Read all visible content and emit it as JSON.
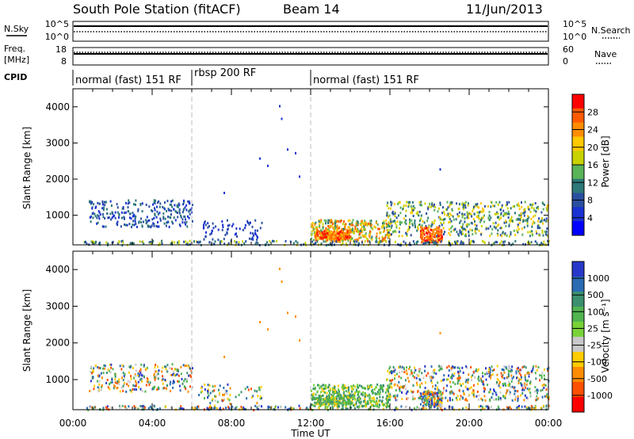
{
  "header": {
    "station": "South Pole Station (fitACF)",
    "beam": "Beam 14",
    "date": "11/Jun/2013"
  },
  "side_labels": {
    "n_sky": "N.Sky",
    "freq_top": "Freq.",
    "freq_unit": "[MHz]",
    "cpid": "CPID",
    "n_search": "N.Search",
    "nave": "Nave"
  },
  "chart_data": [
    {
      "type": "line",
      "title": "N.Sky / N.Search",
      "yticks_left": [
        "10^5",
        "10^0"
      ],
      "yticks_right": [
        "10^5",
        "10^0"
      ],
      "series": [
        {
          "name": "N.Sky",
          "style": "solid"
        },
        {
          "name": "N.Search",
          "style": "dotted"
        }
      ]
    },
    {
      "type": "line",
      "title": "Freq. / Nave",
      "yticks_left": [
        "18",
        "8"
      ],
      "yticks_right": [
        "60",
        "0"
      ],
      "series": [
        {
          "name": "Freq.",
          "style": "solid"
        },
        {
          "name": "Nave",
          "style": "dotted"
        }
      ]
    },
    {
      "type": "table",
      "title": "CPID",
      "segments": [
        {
          "label": "normal (fast) 151 RF",
          "start_h": 0,
          "end_h": 6
        },
        {
          "label": "rbsp 200 RF",
          "start_h": 6,
          "end_h": 12
        },
        {
          "label": "normal (fast) 151 RF",
          "start_h": 12,
          "end_h": 24
        }
      ]
    },
    {
      "type": "heatmap",
      "name": "power",
      "ylabel": "Slant Range [km]",
      "yticks": [
        1000,
        2000,
        3000,
        4000
      ],
      "ylim": [
        180,
        4500
      ],
      "colorbar": {
        "label": "Power [dB]",
        "ticks": [
          "28",
          "24",
          "20",
          "16",
          "12",
          "8",
          "4"
        ],
        "colors": [
          "#ff0000",
          "#ff5a00",
          "#ff8c00",
          "#ffc800",
          "#c8d200",
          "#5ab45a",
          "#2d7878",
          "#2a4fa0",
          "#1a32d2",
          "#0000ff"
        ]
      }
    },
    {
      "type": "heatmap",
      "name": "velocity",
      "ylabel": "Slant Range [km]",
      "yticks": [
        1000,
        2000,
        3000,
        4000
      ],
      "ylim": [
        180,
        4500
      ],
      "xlabel": "Time UT",
      "xticks": [
        "00:00",
        "04:00",
        "08:00",
        "12:00",
        "16:00",
        "20:00",
        "00:00"
      ],
      "xlim_hours": [
        0,
        24
      ],
      "colorbar": {
        "label": "Velocity [m s⁻¹]",
        "ticks": [
          "1000",
          "500",
          "100",
          "25",
          "-25",
          "-100",
          "-500",
          "-1000"
        ],
        "colors": [
          "#2838c8",
          "#2a6bb4",
          "#3c9070",
          "#50b450",
          "#78d238",
          "#c8c8c8",
          "#ffcc00",
          "#ff8c00",
          "#ff5000",
          "#ff0000"
        ]
      }
    }
  ]
}
